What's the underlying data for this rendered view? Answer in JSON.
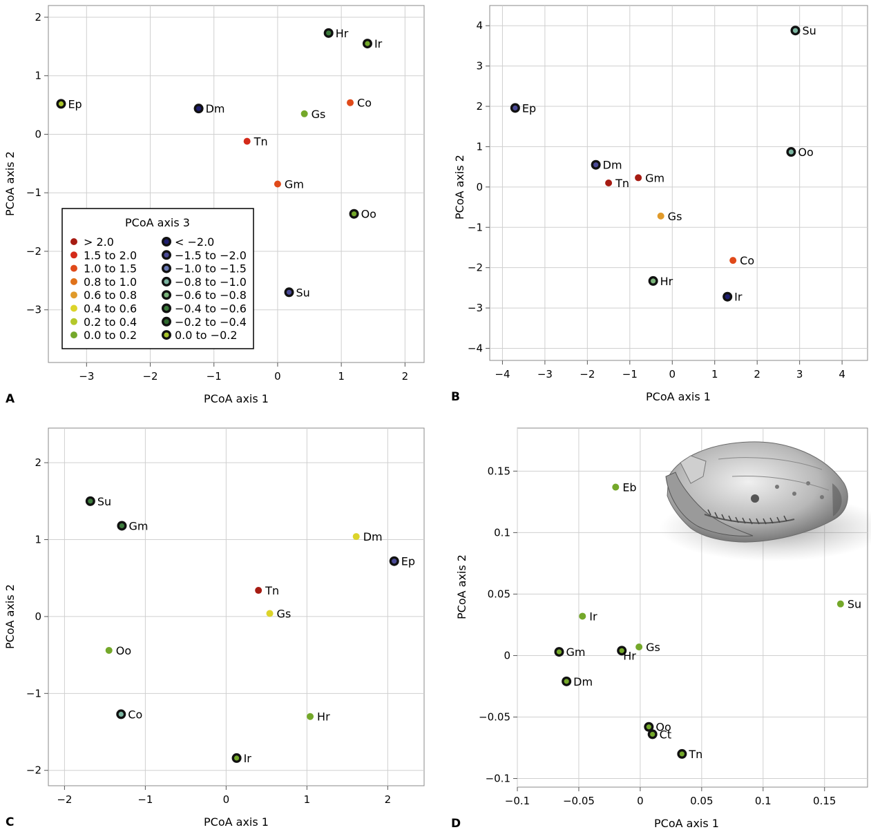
{
  "chart_data": [
    {
      "panel": "A",
      "type": "scatter",
      "xlabel": "PCoA axis 1",
      "ylabel": "PCoA axis 2",
      "xlim": [
        -3.6,
        2.3
      ],
      "ylim": [
        -3.9,
        2.2
      ],
      "xticks": [
        -3,
        -2,
        -1,
        0,
        1,
        2
      ],
      "yticks": [
        -3,
        -2,
        -1,
        0,
        1,
        2
      ],
      "grid": true,
      "legend_placement": "bottom-left",
      "points": [
        {
          "label": "Ep",
          "x": -3.4,
          "y": 0.52,
          "cls": "neg0"
        },
        {
          "label": "Dm",
          "x": -1.24,
          "y": 0.44,
          "cls": "neg20"
        },
        {
          "label": "Tn",
          "x": -0.48,
          "y": -0.12,
          "cls": "p15"
        },
        {
          "label": "Gm",
          "x": 0.0,
          "y": -0.85,
          "cls": "p10"
        },
        {
          "label": "Gs",
          "x": 0.42,
          "y": 0.35,
          "cls": "p0"
        },
        {
          "label": "Hr",
          "x": 0.8,
          "y": 1.73,
          "cls": "neg04"
        },
        {
          "label": "Ir",
          "x": 1.41,
          "y": 1.55,
          "cls": "neg02"
        },
        {
          "label": "Co",
          "x": 1.14,
          "y": 0.54,
          "cls": "p10"
        },
        {
          "label": "Oo",
          "x": 1.2,
          "y": -1.36,
          "cls": "neg02"
        },
        {
          "label": "Su",
          "x": 0.18,
          "y": -2.7,
          "cls": "neg15"
        }
      ]
    },
    {
      "panel": "B",
      "type": "scatter",
      "xlabel": "PCoA axis 1",
      "ylabel": "PCoA axis 2",
      "xlim": [
        -4.3,
        4.6
      ],
      "ylim": [
        -4.3,
        4.5
      ],
      "xticks": [
        -4,
        -3,
        -2,
        -1,
        0,
        1,
        2,
        3,
        4
      ],
      "yticks": [
        -4,
        -3,
        -2,
        -1,
        0,
        1,
        2,
        3,
        4
      ],
      "grid": true,
      "points": [
        {
          "label": "Su",
          "x": 2.9,
          "y": 3.88,
          "cls": "neg08"
        },
        {
          "label": "Ep",
          "x": -3.7,
          "y": 1.96,
          "cls": "neg15"
        },
        {
          "label": "Dm",
          "x": -1.8,
          "y": 0.55,
          "cls": "neg15"
        },
        {
          "label": "Tn",
          "x": -1.5,
          "y": 0.1,
          "cls": "p20"
        },
        {
          "label": "Gm",
          "x": -0.8,
          "y": 0.23,
          "cls": "p20"
        },
        {
          "label": "Oo",
          "x": 2.8,
          "y": 0.87,
          "cls": "neg08"
        },
        {
          "label": "Gs",
          "x": -0.27,
          "y": -0.72,
          "cls": "p06"
        },
        {
          "label": "Co",
          "x": 1.43,
          "y": -1.82,
          "cls": "p10"
        },
        {
          "label": "Hr",
          "x": -0.45,
          "y": -2.33,
          "cls": "neg06"
        },
        {
          "label": "Ir",
          "x": 1.3,
          "y": -2.72,
          "cls": "neg20"
        }
      ]
    },
    {
      "panel": "C",
      "type": "scatter",
      "xlabel": "PCoA axis 1",
      "ylabel": "PCoA axis 2",
      "xlim": [
        -2.2,
        2.45
      ],
      "ylim": [
        -2.2,
        2.45
      ],
      "xticks": [
        -2,
        -1,
        0,
        1,
        2
      ],
      "yticks": [
        -2,
        -1,
        0,
        1,
        2
      ],
      "grid": true,
      "points": [
        {
          "label": "Su",
          "x": -1.68,
          "y": 1.5,
          "cls": "neg04"
        },
        {
          "label": "Gm",
          "x": -1.29,
          "y": 1.18,
          "cls": "neg04"
        },
        {
          "label": "Dm",
          "x": 1.61,
          "y": 1.04,
          "cls": "p04"
        },
        {
          "label": "Ep",
          "x": 2.08,
          "y": 0.72,
          "cls": "neg15"
        },
        {
          "label": "Tn",
          "x": 0.4,
          "y": 0.34,
          "cls": "p20"
        },
        {
          "label": "Gs",
          "x": 0.54,
          "y": 0.04,
          "cls": "p04"
        },
        {
          "label": "Oo",
          "x": -1.45,
          "y": -0.44,
          "cls": "p0"
        },
        {
          "label": "Co",
          "x": -1.3,
          "y": -1.27,
          "cls": "neg08"
        },
        {
          "label": "Hr",
          "x": 1.04,
          "y": -1.3,
          "cls": "p0"
        },
        {
          "label": "Ir",
          "x": 0.13,
          "y": -1.84,
          "cls": "neg02"
        }
      ]
    },
    {
      "panel": "D",
      "type": "scatter",
      "xlabel": "PCoA axis 1",
      "ylabel": "PCoA axis 2",
      "xlim": [
        -0.1,
        0.185
      ],
      "ylim": [
        -0.107,
        0.185
      ],
      "xticks": [
        -0.1,
        -0.05,
        0,
        0.05,
        0.1,
        0.15
      ],
      "xtick_labels": [
        "−0.1",
        "−0.05",
        "0",
        "0.05",
        "0.1",
        "0.15"
      ],
      "yticks": [
        -0.1,
        -0.05,
        0,
        0.05,
        0.1,
        0.15
      ],
      "ytick_labels": [
        "−0.1",
        "−0.05",
        "0",
        "0.05",
        "0.1",
        "0.15"
      ],
      "grid": true,
      "points": [
        {
          "label": "Eb",
          "x": -0.02,
          "y": 0.137,
          "cls": "p0"
        },
        {
          "label": "Ir",
          "x": -0.047,
          "y": 0.032,
          "cls": "p0"
        },
        {
          "label": "Su",
          "x": 0.163,
          "y": 0.042,
          "cls": "p0"
        },
        {
          "label": "Gm",
          "x": -0.066,
          "y": 0.003,
          "cls": "neg02"
        },
        {
          "label": "Hr",
          "x": -0.015,
          "y": 0.004,
          "cls": "neg02"
        },
        {
          "label": "Gs",
          "x": -0.001,
          "y": 0.007,
          "cls": "p0"
        },
        {
          "label": "Dm",
          "x": -0.06,
          "y": -0.021,
          "cls": "neg02"
        },
        {
          "label": "Oo",
          "x": 0.007,
          "y": -0.058,
          "cls": "neg02"
        },
        {
          "label": "Ct",
          "x": 0.01,
          "y": -0.064,
          "cls": "neg02"
        },
        {
          "label": "Tn",
          "x": 0.034,
          "y": -0.08,
          "cls": "neg02"
        }
      ]
    }
  ],
  "legend": {
    "title": "PCoA axis 3",
    "left_column": [
      {
        "label": "> 2.0",
        "cls": "p20"
      },
      {
        "label": "1.5 to 2.0",
        "cls": "p15"
      },
      {
        "label": "1.0 to 1.5",
        "cls": "p10"
      },
      {
        "label": "0.8 to 1.0",
        "cls": "p08"
      },
      {
        "label": "0.6 to 0.8",
        "cls": "p06"
      },
      {
        "label": "0.4 to 0.6",
        "cls": "p04"
      },
      {
        "label": "0.2 to 0.4",
        "cls": "p02"
      },
      {
        "label": "0.0 to 0.2",
        "cls": "p0"
      }
    ],
    "right_column": [
      {
        "label": "< −2.0",
        "cls": "neg20"
      },
      {
        "label": "−1.5 to −2.0",
        "cls": "neg15"
      },
      {
        "label": "−1.0 to −1.5",
        "cls": "neg10"
      },
      {
        "label": "−0.8 to −1.0",
        "cls": "neg08"
      },
      {
        "label": "−0.6 to −0.8",
        "cls": "neg06"
      },
      {
        "label": "−0.4 to −0.6",
        "cls": "neg04"
      },
      {
        "label": "−0.2 to −0.4",
        "cls": "neg02b"
      },
      {
        "label": "0.0 to −0.2",
        "cls": "neg0"
      }
    ]
  },
  "color_classes": {
    "p20": {
      "fill": "#a61b12",
      "ring": false
    },
    "p15": {
      "fill": "#d42a1a",
      "ring": false
    },
    "p10": {
      "fill": "#e04a1a",
      "ring": false
    },
    "p08": {
      "fill": "#e0721a",
      "ring": false
    },
    "p06": {
      "fill": "#e09a2a",
      "ring": false
    },
    "p04": {
      "fill": "#dcd42a",
      "ring": false
    },
    "p02": {
      "fill": "#b4c82a",
      "ring": false
    },
    "p0": {
      "fill": "#74a82a",
      "ring": false
    },
    "neg20": {
      "fill": "#1e1e6e",
      "ring": true
    },
    "neg15": {
      "fill": "#4a4a96",
      "ring": true
    },
    "neg10": {
      "fill": "#6a7ab4",
      "ring": true
    },
    "neg08": {
      "fill": "#7ab4a0",
      "ring": true
    },
    "neg06": {
      "fill": "#7ab47a",
      "ring": true
    },
    "neg04": {
      "fill": "#3c7a3c",
      "ring": true
    },
    "neg02b": {
      "fill": "#2e6a2e",
      "ring": true
    },
    "neg02": {
      "fill": "#74a82a",
      "ring": true
    },
    "neg0": {
      "fill": "#a8c42a",
      "ring": true
    }
  },
  "panel_letters": [
    "A",
    "B",
    "C",
    "D"
  ]
}
